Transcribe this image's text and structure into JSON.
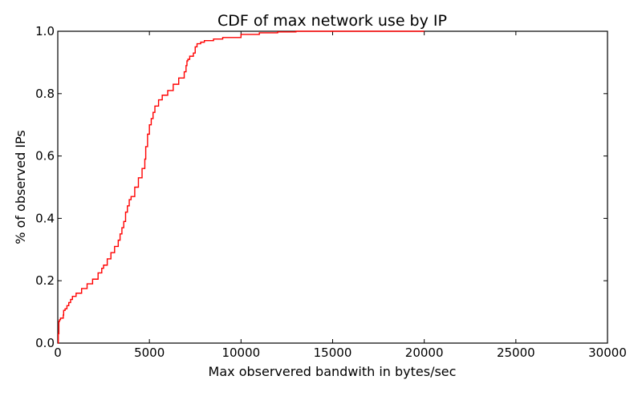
{
  "chart_data": {
    "type": "line",
    "title": "CDF of max network use by IP",
    "xlabel": "Max observered bandwith in bytes/sec",
    "ylabel": "% of observed IPs",
    "xlim": [
      0,
      30000
    ],
    "ylim": [
      0,
      1.0
    ],
    "xticks": [
      0,
      5000,
      10000,
      15000,
      20000,
      25000,
      30000
    ],
    "xtick_labels": [
      "0",
      "5000",
      "10000",
      "15000",
      "20000",
      "25000",
      "30000"
    ],
    "yticks": [
      0,
      0.2,
      0.4,
      0.6,
      0.8,
      1.0
    ],
    "ytick_labels": [
      "0.0",
      "0.2",
      "0.4",
      "0.6",
      "0.8",
      "1.0"
    ],
    "grid": false,
    "line_color": "#ff0000",
    "series": [
      {
        "x": [
          0,
          30,
          60,
          100,
          150,
          300,
          320,
          400,
          500,
          600,
          700,
          800,
          1000,
          1300,
          1600,
          1900,
          2200,
          2400,
          2500,
          2700,
          2900,
          3100,
          3300,
          3400,
          3500,
          3600,
          3700,
          3800,
          3900,
          4000,
          4200,
          4400,
          4600,
          4750,
          4800,
          4900,
          5000,
          5100,
          5200,
          5300,
          5500,
          5700,
          6000,
          6300,
          6600,
          6900,
          7000,
          7050,
          7100,
          7200,
          7400,
          7500,
          7600,
          7800,
          8000,
          8500,
          9000,
          10000,
          11000,
          12000,
          13000,
          15000,
          20000
        ],
        "y": [
          0.0,
          0.03,
          0.07,
          0.075,
          0.08,
          0.09,
          0.105,
          0.11,
          0.12,
          0.13,
          0.14,
          0.15,
          0.16,
          0.175,
          0.19,
          0.205,
          0.225,
          0.24,
          0.25,
          0.27,
          0.29,
          0.31,
          0.33,
          0.35,
          0.37,
          0.39,
          0.42,
          0.44,
          0.46,
          0.47,
          0.5,
          0.53,
          0.56,
          0.59,
          0.63,
          0.67,
          0.7,
          0.72,
          0.74,
          0.76,
          0.78,
          0.795,
          0.81,
          0.83,
          0.85,
          0.87,
          0.89,
          0.905,
          0.91,
          0.92,
          0.93,
          0.95,
          0.96,
          0.965,
          0.97,
          0.975,
          0.98,
          0.99,
          0.995,
          0.998,
          1.0,
          1.0,
          1.0
        ]
      }
    ]
  }
}
